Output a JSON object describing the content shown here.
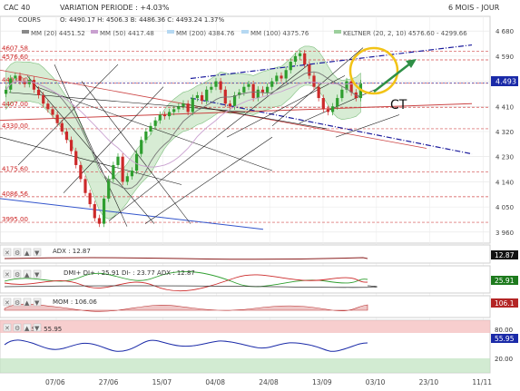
{
  "header": {
    "symbol": "CAC 40",
    "variation": "VARIATION PERIODE : +4.03%",
    "period": "6 MOIS - JOUR",
    "cours_label": "COURS",
    "ohlc": "O: 4490.17   H: 4506.3   B: 4486.36   C: 4493.24  1.37%"
  },
  "indicators_legend": {
    "mm20": "MM (20)  4451.52",
    "mm50": "MM (50)  4417.48",
    "mm200": "MM (200)  4384.76",
    "mm100": "MM (100)  4375.76",
    "keltner": "KELTNER (20, 2, 10)  4576.60 - 4299.66"
  },
  "annotation": {
    "text": "CT"
  },
  "colors": {
    "candle_up": "#2e9e2e",
    "candle_down": "#cc2a2a",
    "keltner_fill": "#b7ddb0",
    "trend_blue": "#1a1a9c",
    "highlight": "#f2c316",
    "arrow": "#2f8f46"
  },
  "chart_data": {
    "type": "candlestick",
    "yaxis_ticks": [
      "4 680",
      "4 590",
      "4 500",
      "4 410",
      "4 320",
      "4 230",
      "4 140",
      "4 050",
      "3 960"
    ],
    "ylim": [
      3940,
      4700
    ],
    "xaxis_ticks": [
      "07/06",
      "27/06",
      "15/07",
      "04/08",
      "24/08",
      "13/09",
      "03/10",
      "23/10",
      "11/11"
    ],
    "last_price_label": "4.493",
    "last_price": 4493,
    "levels": [
      {
        "label": "4607.58",
        "value": 4607.6
      },
      {
        "label": "4576.60",
        "value": 4576.6
      },
      {
        "label": "4493.00",
        "value": 4493
      },
      {
        "label": "4407.00",
        "value": 4407
      },
      {
        "label": "4330.00",
        "value": 4330
      },
      {
        "label": "4175.60",
        "value": 4175.6
      },
      {
        "label": "4086.56",
        "value": 4086.6
      },
      {
        "label": "3995.00",
        "value": 3995
      }
    ],
    "candles_close": [
      4470,
      4510,
      4520,
      4500,
      4490,
      4505,
      4470,
      4450,
      4420,
      4400,
      4380,
      4350,
      4320,
      4290,
      4250,
      4200,
      4150,
      4100,
      4060,
      4010,
      3990,
      4080,
      4150,
      4200,
      4230,
      4140,
      4160,
      4180,
      4240,
      4290,
      4320,
      4340,
      4360,
      4380,
      4375,
      4390,
      4400,
      4410,
      4420,
      4390,
      4440,
      4450,
      4430,
      4470,
      4480,
      4500,
      4470,
      4420,
      4410,
      4450,
      4460,
      4480,
      4490,
      4440,
      4470,
      4460,
      4480,
      4500,
      4520,
      4510,
      4540,
      4570,
      4590,
      4600,
      4560,
      4520,
      4480,
      4440,
      4400,
      4390,
      4410,
      4440,
      4470,
      4500,
      4460,
      4440,
      4493
    ],
    "panels": [
      {
        "name": "ADX",
        "label": "ADX : 12.87",
        "value_label": "12.87"
      },
      {
        "name": "DMI",
        "label": "DMI+ DI+ : 25.91  DI- : 23.77  ADX : 12.87",
        "value_label": "25.91"
      },
      {
        "name": "MOM",
        "label": "MOM : 106.06",
        "value_label": "106.1"
      },
      {
        "name": "RSI",
        "label": "RSI : 55.95",
        "value_label": "55.95",
        "ticks": [
          "80.00",
          "20.00"
        ],
        "upper": 80,
        "lower": 20
      }
    ]
  }
}
